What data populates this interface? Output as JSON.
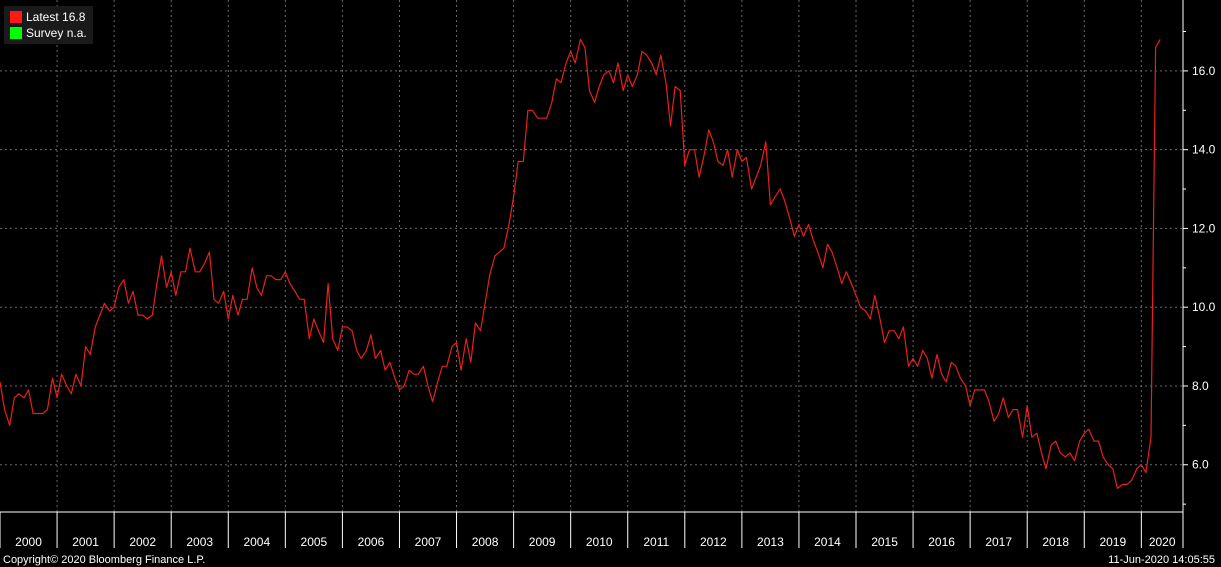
{
  "legend": {
    "latest_label": "Latest",
    "latest_value": "16.8",
    "survey_label": "Survey",
    "survey_value": "n.a.",
    "latest_color": "#ff1a1a",
    "survey_color": "#00ff00"
  },
  "footer": {
    "copyright": "Copyright© 2020 Bloomberg Finance L.P.",
    "timestamp": "11-Jun-2020 14:05:55"
  },
  "chart_data": {
    "type": "line",
    "title": "",
    "xlabel": "",
    "ylabel": "",
    "ylim": [
      4.8,
      17.8
    ],
    "xlim": [
      2000.0,
      2020.73
    ],
    "y_ticks": [
      "6.0",
      "8.0",
      "10.0",
      "12.0",
      "14.0",
      "16.0"
    ],
    "x_tick_labels": [
      "2000",
      "2001",
      "2002",
      "2003",
      "2004",
      "2005",
      "2006",
      "2007",
      "2008",
      "2009",
      "2010",
      "2011",
      "2012",
      "2013",
      "2014",
      "2015",
      "2016",
      "2017",
      "2018",
      "2019",
      "2020"
    ],
    "grid": true,
    "line_color": "#e8211a",
    "series": [
      {
        "name": "Latest",
        "x": [
          2000.0,
          2000.08,
          2000.17,
          2000.25,
          2000.33,
          2000.42,
          2000.5,
          2000.58,
          2000.67,
          2000.75,
          2000.83,
          2000.92,
          2001.0,
          2001.08,
          2001.17,
          2001.25,
          2001.33,
          2001.42,
          2001.5,
          2001.58,
          2001.67,
          2001.75,
          2001.83,
          2001.92,
          2002.0,
          2002.08,
          2002.17,
          2002.25,
          2002.33,
          2002.42,
          2002.5,
          2002.58,
          2002.67,
          2002.75,
          2002.83,
          2002.92,
          2003.0,
          2003.08,
          2003.17,
          2003.25,
          2003.33,
          2003.42,
          2003.5,
          2003.58,
          2003.67,
          2003.75,
          2003.83,
          2003.92,
          2004.0,
          2004.08,
          2004.17,
          2004.25,
          2004.33,
          2004.42,
          2004.5,
          2004.58,
          2004.67,
          2004.75,
          2004.83,
          2004.92,
          2005.0,
          2005.08,
          2005.17,
          2005.25,
          2005.33,
          2005.42,
          2005.5,
          2005.58,
          2005.67,
          2005.75,
          2005.83,
          2005.92,
          2006.0,
          2006.08,
          2006.17,
          2006.25,
          2006.33,
          2006.42,
          2006.5,
          2006.58,
          2006.67,
          2006.75,
          2006.83,
          2006.92,
          2007.0,
          2007.08,
          2007.17,
          2007.25,
          2007.33,
          2007.42,
          2007.5,
          2007.58,
          2007.67,
          2007.75,
          2007.83,
          2007.92,
          2008.0,
          2008.08,
          2008.17,
          2008.25,
          2008.33,
          2008.42,
          2008.5,
          2008.58,
          2008.67,
          2008.75,
          2008.83,
          2008.92,
          2009.0,
          2009.08,
          2009.17,
          2009.25,
          2009.33,
          2009.42,
          2009.5,
          2009.58,
          2009.67,
          2009.75,
          2009.83,
          2009.92,
          2010.0,
          2010.08,
          2010.17,
          2010.25,
          2010.33,
          2010.42,
          2010.5,
          2010.58,
          2010.67,
          2010.75,
          2010.83,
          2010.92,
          2011.0,
          2011.08,
          2011.17,
          2011.25,
          2011.33,
          2011.42,
          2011.5,
          2011.58,
          2011.67,
          2011.75,
          2011.83,
          2011.92,
          2012.0,
          2012.08,
          2012.17,
          2012.25,
          2012.33,
          2012.42,
          2012.5,
          2012.58,
          2012.67,
          2012.75,
          2012.83,
          2012.92,
          2013.0,
          2013.08,
          2013.17,
          2013.25,
          2013.33,
          2013.42,
          2013.5,
          2013.58,
          2013.67,
          2013.75,
          2013.83,
          2013.92,
          2014.0,
          2014.08,
          2014.17,
          2014.25,
          2014.33,
          2014.42,
          2014.5,
          2014.58,
          2014.67,
          2014.75,
          2014.83,
          2014.92,
          2015.0,
          2015.08,
          2015.17,
          2015.25,
          2015.33,
          2015.42,
          2015.5,
          2015.58,
          2015.67,
          2015.75,
          2015.83,
          2015.92,
          2016.0,
          2016.08,
          2016.17,
          2016.25,
          2016.33,
          2016.42,
          2016.5,
          2016.58,
          2016.67,
          2016.75,
          2016.83,
          2016.92,
          2017.0,
          2017.08,
          2017.17,
          2017.25,
          2017.33,
          2017.42,
          2017.5,
          2017.58,
          2017.67,
          2017.75,
          2017.83,
          2017.92,
          2018.0,
          2018.08,
          2018.17,
          2018.25,
          2018.33,
          2018.42,
          2018.5,
          2018.58,
          2018.67,
          2018.75,
          2018.83,
          2018.92,
          2019.0,
          2019.08,
          2019.17,
          2019.25,
          2019.33,
          2019.42,
          2019.5,
          2019.58,
          2019.67,
          2019.75,
          2019.83,
          2019.92,
          2020.0,
          2020.08,
          2020.17,
          2020.25,
          2020.33
        ],
        "values": [
          8.1,
          7.4,
          7.0,
          7.7,
          7.8,
          7.7,
          7.9,
          7.3,
          7.3,
          7.3,
          7.4,
          8.2,
          7.7,
          8.3,
          8.0,
          7.8,
          8.3,
          8.0,
          9.0,
          8.8,
          9.5,
          9.8,
          10.1,
          9.9,
          10.0,
          10.5,
          10.7,
          10.1,
          10.4,
          9.8,
          9.8,
          9.7,
          9.8,
          10.6,
          11.3,
          10.5,
          10.9,
          10.3,
          10.9,
          10.9,
          11.5,
          10.9,
          10.9,
          11.1,
          11.4,
          10.2,
          10.1,
          10.4,
          9.7,
          10.3,
          9.8,
          10.2,
          10.2,
          11.0,
          10.5,
          10.3,
          10.8,
          10.8,
          10.7,
          10.7,
          10.9,
          10.6,
          10.4,
          10.2,
          10.2,
          9.2,
          9.7,
          9.4,
          9.1,
          10.6,
          9.2,
          8.9,
          9.5,
          9.5,
          9.4,
          8.9,
          8.7,
          8.9,
          9.3,
          8.7,
          8.9,
          8.4,
          8.6,
          8.2,
          7.9,
          8.0,
          8.4,
          8.3,
          8.3,
          8.5,
          8.0,
          7.6,
          8.1,
          8.5,
          8.5,
          9.0,
          9.1,
          8.4,
          9.2,
          8.6,
          9.6,
          9.4,
          10.1,
          10.8,
          11.3,
          11.4,
          11.5,
          12.1,
          12.8,
          13.7,
          13.7,
          15.0,
          15.0,
          14.8,
          14.8,
          14.8,
          15.2,
          15.8,
          15.7,
          16.2,
          16.5,
          16.2,
          16.8,
          16.6,
          15.5,
          15.2,
          15.6,
          15.9,
          16.0,
          15.7,
          16.2,
          15.5,
          15.9,
          15.6,
          15.9,
          16.5,
          16.4,
          16.2,
          15.9,
          16.4,
          15.7,
          14.6,
          15.6,
          15.5,
          13.6,
          14.0,
          14.0,
          13.3,
          13.8,
          14.5,
          14.2,
          13.7,
          13.6,
          14.0,
          13.3,
          14.0,
          13.7,
          13.8,
          13.0,
          13.3,
          13.6,
          14.2,
          12.6,
          12.8,
          13.0,
          12.7,
          12.3,
          11.8,
          12.1,
          11.8,
          12.1,
          11.7,
          11.4,
          11.0,
          11.6,
          11.4,
          11.0,
          10.6,
          10.9,
          10.6,
          10.3,
          10.0,
          9.9,
          9.7,
          10.3,
          9.7,
          9.1,
          9.4,
          9.4,
          9.2,
          9.5,
          8.5,
          8.7,
          8.5,
          8.9,
          8.7,
          8.2,
          8.8,
          8.3,
          8.1,
          8.6,
          8.5,
          8.2,
          8.0,
          7.5,
          7.9,
          7.9,
          7.9,
          7.6,
          7.1,
          7.3,
          7.7,
          7.2,
          7.4,
          7.4,
          6.7,
          7.5,
          6.7,
          6.8,
          6.3,
          5.9,
          6.5,
          6.6,
          6.3,
          6.2,
          6.3,
          6.1,
          6.6,
          6.8,
          6.9,
          6.6,
          6.6,
          6.2,
          6.0,
          5.9,
          5.4,
          5.5,
          5.5,
          5.6,
          5.9,
          6.0,
          5.8,
          6.7,
          16.6,
          16.8
        ]
      }
    ]
  }
}
